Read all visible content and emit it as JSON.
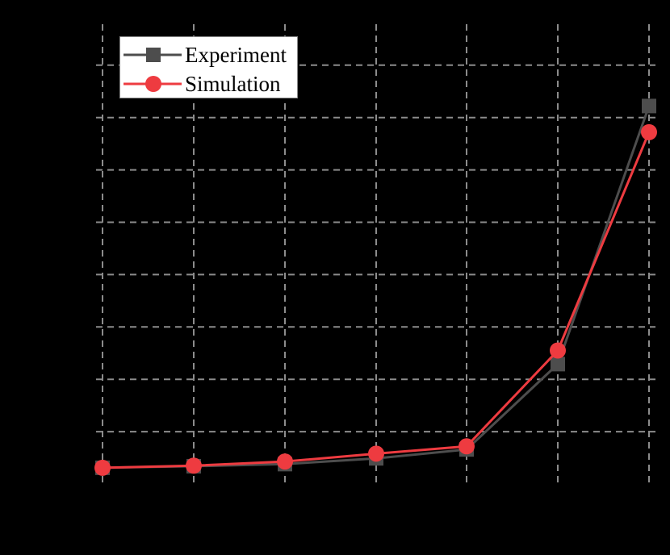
{
  "chart_data": {
    "type": "line",
    "title": "",
    "xlabel": "",
    "ylabel": "",
    "x": [
      1,
      2,
      3,
      4,
      5,
      6,
      7
    ],
    "series": [
      {
        "name": "Experiment",
        "marker": "square",
        "color": "#4d4d4d",
        "values": [
          0.31,
          0.34,
          0.38,
          0.49,
          0.66,
          2.29,
          7.22
        ]
      },
      {
        "name": "Simulation",
        "marker": "circle",
        "color": "#ee3b40",
        "values": [
          0.31,
          0.35,
          0.43,
          0.58,
          0.72,
          2.55,
          6.72
        ]
      }
    ],
    "ylim": [
      0,
      8
    ],
    "grid": true,
    "grid_style": "dashed",
    "legend_position": "upper left",
    "notes": "Axis lines, tick labels and axis titles are rendered black on a black background and are not visible; values are expressed in gridline units."
  },
  "legend": {
    "items": [
      {
        "label": "Experiment"
      },
      {
        "label": "Simulation"
      }
    ]
  },
  "colors": {
    "background": "#000000",
    "grid": "#8c8c8c",
    "experiment": "#4d4d4d",
    "simulation": "#ee3b40"
  }
}
